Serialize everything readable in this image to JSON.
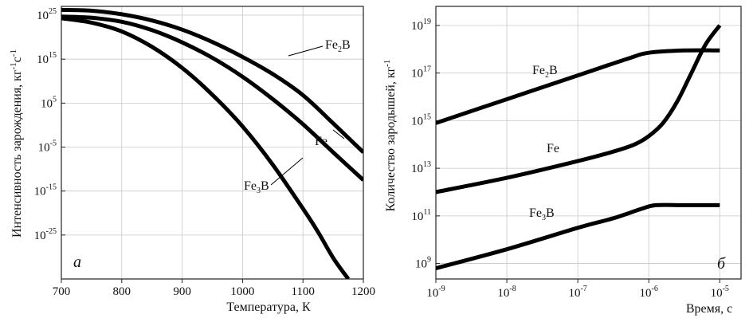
{
  "chart_data": [
    {
      "type": "line",
      "panel_label": "а",
      "xlabel": "Температура, К",
      "ylabel": "Интенсивность зарождения, кг⁻¹с⁻¹",
      "xlim": [
        700,
        1200
      ],
      "ylim": [
        -35,
        27
      ],
      "y_scale": "log10",
      "grid": true,
      "x_ticks": [
        {
          "value": 700,
          "label": "700"
        },
        {
          "value": 800,
          "label": "800"
        },
        {
          "value": 900,
          "label": "900"
        },
        {
          "value": 1000,
          "label": "1000"
        },
        {
          "value": 1100,
          "label": "1100"
        },
        {
          "value": 1200,
          "label": "1200"
        }
      ],
      "y_ticks": [
        {
          "value": 25,
          "base": "10",
          "exp": "25"
        },
        {
          "value": 15,
          "base": "10",
          "exp": "15"
        },
        {
          "value": 5,
          "base": "10",
          "exp": "5"
        },
        {
          "value": -5,
          "base": "10",
          "exp": "-5"
        },
        {
          "value": -15,
          "base": "10",
          "exp": "-15"
        },
        {
          "value": -25,
          "base": "10",
          "exp": "-25"
        }
      ],
      "series": [
        {
          "name": "Fe₂B",
          "x": [
            700,
            750,
            800,
            850,
            900,
            950,
            1000,
            1050,
            1100,
            1150,
            1200
          ],
          "y": [
            26.2,
            26.0,
            25.2,
            23.8,
            21.7,
            18.9,
            15.5,
            11.6,
            6.8,
            0.4,
            -6.2
          ]
        },
        {
          "name": "Fe",
          "x": [
            700,
            750,
            800,
            850,
            900,
            950,
            1000,
            1050,
            1100,
            1150,
            1200
          ],
          "y": [
            24.7,
            24.4,
            23.5,
            21.6,
            18.8,
            15.3,
            11.0,
            5.9,
            0.2,
            -6.2,
            -12.5
          ]
        },
        {
          "name": "Fe₃B",
          "x": [
            700,
            750,
            800,
            850,
            900,
            950,
            1000,
            1050,
            1100,
            1125,
            1150,
            1175
          ],
          "y": [
            24.3,
            23.3,
            21.3,
            17.8,
            13.0,
            6.9,
            -0.3,
            -9.0,
            -19.0,
            -24.3,
            -30.2,
            -35
          ]
        }
      ]
    },
    {
      "type": "line",
      "panel_label": "б",
      "xlabel": "Время, с",
      "ylabel": "Количество зародышей, кг⁻¹",
      "xlim": [
        -9,
        -4.7
      ],
      "ylim": [
        8.35,
        19.8
      ],
      "x_scale": "log10",
      "y_scale": "log10",
      "grid": true,
      "x_ticks": [
        {
          "value": -9,
          "base": "10",
          "exp": "-9"
        },
        {
          "value": -8,
          "base": "10",
          "exp": "-8"
        },
        {
          "value": -7,
          "base": "10",
          "exp": "-7"
        },
        {
          "value": -6,
          "base": "10",
          "exp": "-6"
        },
        {
          "value": -5,
          "base": "10",
          "exp": "-5"
        }
      ],
      "y_ticks": [
        {
          "value": 19,
          "base": "10",
          "exp": "19"
        },
        {
          "value": 17,
          "base": "10",
          "exp": "17"
        },
        {
          "value": 15,
          "base": "10",
          "exp": "15"
        },
        {
          "value": 13,
          "base": "10",
          "exp": "13"
        },
        {
          "value": 11,
          "base": "10",
          "exp": "11"
        },
        {
          "value": 9,
          "base": "10",
          "exp": "9"
        }
      ],
      "series": [
        {
          "name": "Fe₂B",
          "x": [
            -9,
            -8,
            -7,
            -6.3,
            -6,
            -5.5,
            -5.0
          ],
          "y": [
            14.9,
            15.9,
            16.9,
            17.6,
            17.85,
            17.95,
            17.95
          ]
        },
        {
          "name": "Fe",
          "x": [
            -9,
            -8,
            -7,
            -6.5,
            -6.2,
            -6.0,
            -5.8,
            -5.6,
            -5.4,
            -5.2,
            -5.0
          ],
          "y": [
            12.0,
            12.6,
            13.3,
            13.7,
            14.0,
            14.35,
            14.9,
            15.8,
            17.0,
            18.2,
            19.0
          ]
        },
        {
          "name": "Fe₃B",
          "x": [
            -9,
            -8,
            -7,
            -6.5,
            -6.1,
            -5.9,
            -5.5,
            -5.0
          ],
          "y": [
            8.8,
            9.6,
            10.5,
            10.9,
            11.3,
            11.45,
            11.45,
            11.45
          ]
        }
      ]
    }
  ]
}
